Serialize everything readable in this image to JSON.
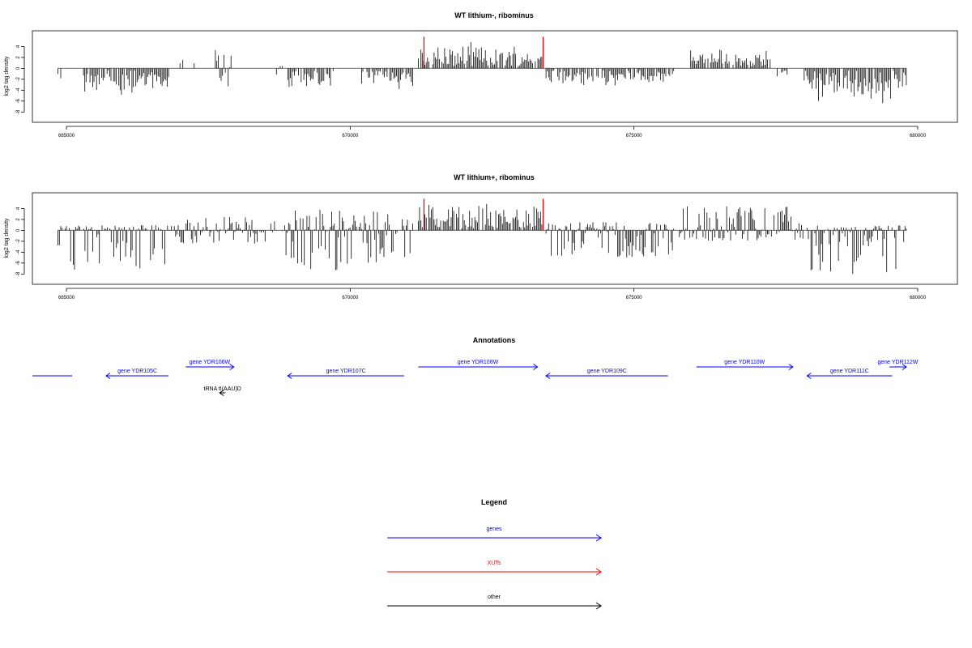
{
  "colors": {
    "gene": "#0000ff",
    "xut": "#ff0000",
    "other": "#000000",
    "axis": "#000000",
    "baseline": "#888888"
  },
  "chart_data": [
    {
      "type": "bar",
      "title": "WT lithium-, ribominus",
      "xlabel": "",
      "ylabel": "log2 tag density",
      "xlim": [
        664400,
        680700
      ],
      "ylim": [
        -9,
        6
      ],
      "xticks": [
        665000,
        670000,
        675000,
        680000
      ],
      "yticks": [
        4,
        2,
        0,
        -2,
        -4,
        -6,
        -8
      ],
      "highlighted_positions": [
        671300,
        673400
      ],
      "profile_segments": [
        {
          "start": 664850,
          "end": 664900,
          "lo": -2.2,
          "hi": 0.5
        },
        {
          "start": 665300,
          "end": 666800,
          "lo": -6,
          "hi": 0.5
        },
        {
          "start": 667000,
          "end": 667050,
          "lo": 0,
          "hi": 2
        },
        {
          "start": 667200,
          "end": 667250,
          "lo": 0,
          "hi": 2.5
        },
        {
          "start": 667600,
          "end": 667900,
          "lo": -4,
          "hi": 4
        },
        {
          "start": 668700,
          "end": 668800,
          "lo": -2.5,
          "hi": 1
        },
        {
          "start": 668900,
          "end": 669700,
          "lo": -4.5,
          "hi": 0.5
        },
        {
          "start": 670200,
          "end": 671100,
          "lo": -4,
          "hi": 0.5
        },
        {
          "start": 671200,
          "end": 673400,
          "lo": 0,
          "hi": 5
        },
        {
          "start": 673450,
          "end": 675700,
          "lo": -3.5,
          "hi": 0.5
        },
        {
          "start": 676000,
          "end": 677400,
          "lo": 0,
          "hi": 4
        },
        {
          "start": 677500,
          "end": 677700,
          "lo": -2,
          "hi": 0.5
        },
        {
          "start": 678000,
          "end": 679800,
          "lo": -7,
          "hi": 0.5
        }
      ]
    },
    {
      "type": "bar",
      "title": "WT lithium+, ribominus",
      "xlabel": "",
      "ylabel": "log2 tag density",
      "xlim": [
        664400,
        680700
      ],
      "ylim": [
        -9,
        6
      ],
      "xticks": [
        665000,
        670000,
        675000,
        680000
      ],
      "yticks": [
        4,
        2,
        0,
        -2,
        -4,
        -6,
        -8
      ],
      "highlighted_positions": [
        671300,
        673400
      ],
      "profile_segments": [
        {
          "start": 664850,
          "end": 665000,
          "lo": -3,
          "hi": 1
        },
        {
          "start": 665050,
          "end": 666850,
          "lo": -7.5,
          "hi": 1
        },
        {
          "start": 666900,
          "end": 668500,
          "lo": -2.5,
          "hi": 2.5
        },
        {
          "start": 668600,
          "end": 668700,
          "lo": -1,
          "hi": 3
        },
        {
          "start": 668800,
          "end": 671100,
          "lo": -7.5,
          "hi": 4
        },
        {
          "start": 671200,
          "end": 673400,
          "lo": 0,
          "hi": 5.5
        },
        {
          "start": 673450,
          "end": 675700,
          "lo": -5,
          "hi": 1.5
        },
        {
          "start": 675800,
          "end": 678000,
          "lo": -2,
          "hi": 4.5
        },
        {
          "start": 678050,
          "end": 679800,
          "lo": -8,
          "hi": 1
        }
      ]
    }
  ],
  "annotations": {
    "title": "Annotations",
    "features": [
      {
        "label": "",
        "start": 664400,
        "end": 665100,
        "strand": "none",
        "kind": "gene",
        "row": "minus"
      },
      {
        "label": "gene YDR105C",
        "start": 665700,
        "end": 666800,
        "strand": "-",
        "kind": "gene",
        "row": "minus"
      },
      {
        "label": "gene YDR106W",
        "start": 667100,
        "end": 667950,
        "strand": "+",
        "kind": "gene",
        "row": "plus"
      },
      {
        "label": "tRNA tI(AAU)D",
        "start": 667700,
        "end": 667800,
        "strand": "-",
        "kind": "other",
        "row": "other"
      },
      {
        "label": "gene YDR107C",
        "start": 668900,
        "end": 670950,
        "strand": "-",
        "kind": "gene",
        "row": "minus"
      },
      {
        "label": "gene YDR108W",
        "start": 671200,
        "end": 673300,
        "strand": "+",
        "kind": "gene",
        "row": "plus"
      },
      {
        "label": "gene YDR109C",
        "start": 673450,
        "end": 675600,
        "strand": "-",
        "kind": "gene",
        "row": "minus"
      },
      {
        "label": "gene YDR110W",
        "start": 676100,
        "end": 677800,
        "strand": "+",
        "kind": "gene",
        "row": "plus"
      },
      {
        "label": "gene YDR111C",
        "start": 678050,
        "end": 679550,
        "strand": "-",
        "kind": "gene",
        "row": "minus"
      },
      {
        "label": "gene YDR112W",
        "start": 679500,
        "end": 679800,
        "strand": "+",
        "kind": "gene",
        "row": "plus"
      }
    ]
  },
  "legend": {
    "title": "Legend",
    "items": [
      {
        "label": "genes",
        "color": "#0000ff"
      },
      {
        "label": "XUTs",
        "color": "#ff0000"
      },
      {
        "label": "other",
        "color": "#000000"
      }
    ]
  }
}
